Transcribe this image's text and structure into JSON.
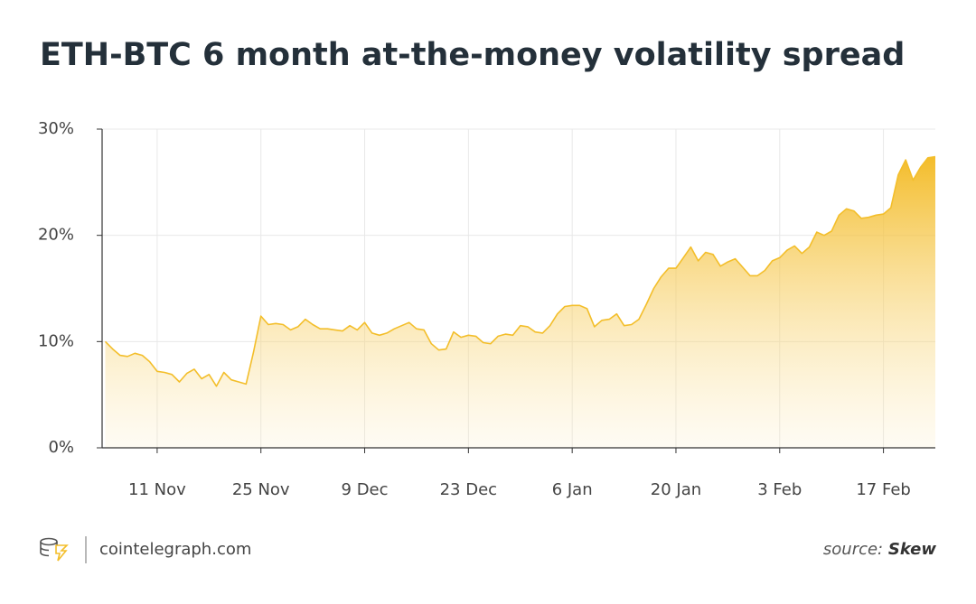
{
  "chart_data": {
    "type": "area",
    "title": "ETH-BTC 6 month at-the-money volatility spread",
    "categories": [
      null,
      null,
      null,
      null,
      null,
      null,
      null,
      "11 Nov",
      null,
      null,
      null,
      null,
      null,
      null,
      null,
      null,
      null,
      null,
      null,
      null,
      null,
      "25 Nov",
      null,
      null,
      null,
      null,
      null,
      null,
      null,
      null,
      null,
      null,
      null,
      null,
      null,
      "9 Dec",
      null,
      null,
      null,
      null,
      null,
      null,
      null,
      null,
      null,
      null,
      null,
      null,
      null,
      "23 Dec",
      null,
      null,
      null,
      null,
      null,
      null,
      null,
      null,
      null,
      null,
      null,
      null,
      null,
      "6 Jan",
      null,
      null,
      null,
      null,
      null,
      null,
      null,
      null,
      null,
      null,
      null,
      null,
      null,
      "20 Jan",
      null,
      null,
      null,
      null,
      null,
      null,
      null,
      null,
      null,
      null,
      null,
      null,
      null,
      "3 Feb",
      null,
      null,
      null,
      null,
      null,
      null,
      null,
      null,
      null,
      null,
      null,
      null,
      null,
      "17 Feb",
      null,
      null,
      null,
      null,
      null,
      null,
      null
    ],
    "values": [
      10.0,
      9.3,
      8.7,
      8.6,
      8.9,
      8.7,
      8.1,
      7.2,
      7.1,
      6.9,
      6.2,
      7.0,
      7.4,
      6.5,
      6.9,
      5.8,
      7.1,
      6.4,
      6.2,
      6.0,
      9.0,
      12.4,
      11.6,
      11.7,
      11.6,
      11.1,
      11.4,
      12.1,
      11.6,
      11.2,
      11.2,
      11.1,
      11.0,
      11.5,
      11.1,
      11.8,
      10.8,
      10.6,
      10.8,
      11.2,
      11.5,
      11.8,
      11.2,
      11.1,
      9.8,
      9.2,
      9.3,
      10.9,
      10.4,
      10.6,
      10.5,
      9.9,
      9.8,
      10.5,
      10.7,
      10.6,
      11.5,
      11.4,
      10.9,
      10.8,
      11.5,
      12.6,
      13.3,
      13.4,
      13.4,
      13.1,
      11.4,
      12.0,
      12.1,
      12.6,
      11.5,
      11.6,
      12.1,
      13.5,
      15.0,
      16.1,
      16.9,
      16.9,
      17.9,
      18.9,
      17.6,
      18.4,
      18.2,
      17.1,
      17.5,
      17.8,
      17.0,
      16.2,
      16.2,
      16.7,
      17.6,
      17.9,
      18.6,
      19.0,
      18.3,
      18.9,
      20.3,
      20.0,
      20.4,
      21.9,
      22.5,
      22.3,
      21.6,
      21.7,
      21.9,
      22.0,
      22.6,
      25.7,
      27.1,
      25.2,
      26.4,
      27.3,
      27.4
    ],
    "color": "#f3be2a",
    "ylim": [
      0,
      30
    ],
    "yticks": [
      {
        "value": 0,
        "label": "0%"
      },
      {
        "value": 10,
        "label": "10%"
      },
      {
        "value": 20,
        "label": "20%"
      },
      {
        "value": 30,
        "label": "30%"
      }
    ],
    "grid": true
  },
  "footer": {
    "site": "cointelegraph.com",
    "source_label": "source:",
    "source_name": "Skew"
  }
}
